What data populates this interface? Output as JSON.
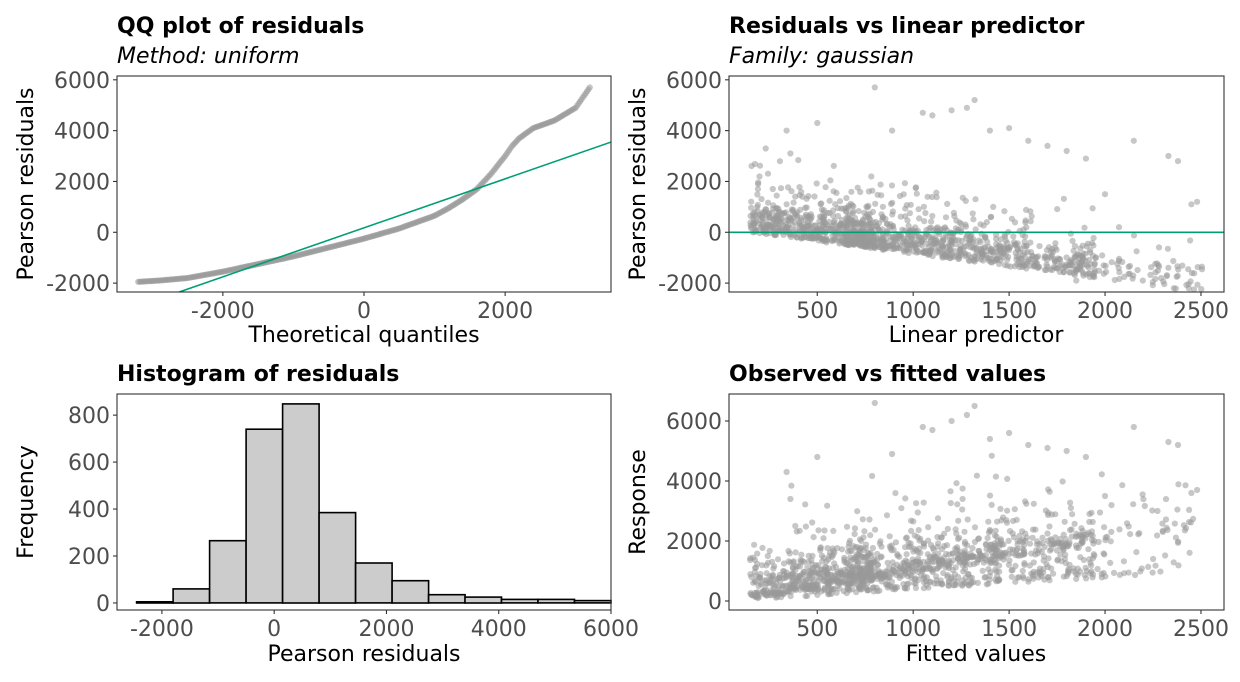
{
  "colors": {
    "point": "#999999",
    "reference_line": "#009E73",
    "bar_fill": "#cccccc",
    "bar_stroke": "#000000",
    "panel_border": "#333333",
    "tick_text": "#4d4d4d"
  },
  "chart_data": [
    {
      "type": "scatter",
      "id": "qq",
      "title": "QQ plot of residuals",
      "subtitle": "Method: uniform",
      "xlabel": "Theoretical quantiles",
      "ylabel": "Pearson residuals",
      "xlim": [
        -3500,
        3500
      ],
      "ylim": [
        -2350,
        6150
      ],
      "xticks": [
        -2000,
        0,
        2000
      ],
      "yticks": [
        -2000,
        0,
        2000,
        4000,
        6000
      ],
      "grid": false,
      "reference_line": {
        "x": [
          -3500,
          3500
        ],
        "y": [
          -3200,
          3550
        ]
      },
      "quantile_curve": {
        "x": [
          -3200,
          -2900,
          -2500,
          -2000,
          -1500,
          -1000,
          -500,
          0,
          500,
          1000,
          1200,
          1400,
          1600,
          1800,
          2000,
          2100,
          2200,
          2400,
          2700,
          3000,
          3200
        ],
        "y": [
          -1950,
          -1900,
          -1800,
          -1550,
          -1250,
          -950,
          -600,
          -250,
          150,
          650,
          950,
          1300,
          1700,
          2300,
          3000,
          3400,
          3700,
          4100,
          4400,
          4900,
          5700
        ]
      }
    },
    {
      "type": "scatter",
      "id": "resid_vs_lp",
      "title": "Residuals vs linear predictor",
      "subtitle": "Family: gaussian",
      "xlabel": "Linear predictor",
      "ylabel": "Pearson residuals",
      "xlim": [
        40,
        2620
      ],
      "ylim": [
        -2350,
        6150
      ],
      "xticks": [
        500,
        1000,
        1500,
        2000,
        2500
      ],
      "yticks": [
        -2000,
        0,
        2000,
        4000,
        6000
      ],
      "grid": false,
      "reference_line": {
        "y": 0
      },
      "points_description": "dense cloud, bottom edge along y = 150 - x",
      "sample_points": {
        "x": [
          340,
          360,
          500,
          800,
          890,
          1050,
          1100,
          1200,
          1280,
          1320,
          1400,
          1500,
          1600,
          1700,
          1800,
          1900,
          2000,
          2150,
          2330,
          2380,
          2450,
          2480,
          1850
        ],
        "y": [
          4000,
          3100,
          4300,
          5700,
          4000,
          4700,
          4600,
          4800,
          4900,
          5200,
          4000,
          4100,
          3600,
          3400,
          3200,
          2900,
          1500,
          3600,
          3000,
          2800,
          1100,
          1200,
          -1900
        ]
      }
    },
    {
      "type": "bar",
      "id": "hist",
      "title": "Histogram of residuals",
      "xlabel": "Pearson residuals",
      "ylabel": "Frequency",
      "xlim": [
        -2800,
        6000
      ],
      "ylim": [
        -30,
        890
      ],
      "xticks": [
        -2000,
        0,
        2000,
        4000,
        6000
      ],
      "yticks": [
        0,
        200,
        400,
        600,
        800
      ],
      "grid": false,
      "bin_width": 650,
      "bin_starts": [
        -2450,
        -1800,
        -1150,
        -500,
        150,
        800,
        1450,
        2100,
        2750,
        3400,
        4050,
        4700,
        5350
      ],
      "values": [
        5,
        60,
        265,
        740,
        848,
        385,
        170,
        95,
        35,
        25,
        15,
        15,
        10
      ]
    },
    {
      "type": "scatter",
      "id": "obs_vs_fitted",
      "title": "Observed vs fitted values",
      "xlabel": "Fitted values",
      "ylabel": "Response",
      "xlim": [
        40,
        2620
      ],
      "ylim": [
        -300,
        6900
      ],
      "xticks": [
        500,
        1000,
        1500,
        2000,
        2500
      ],
      "yticks": [
        0,
        2000,
        4000,
        6000
      ],
      "grid": false,
      "sample_points": {
        "x": [
          340,
          360,
          500,
          800,
          890,
          1050,
          1100,
          1200,
          1280,
          1320,
          1400,
          1500,
          1600,
          1700,
          1800,
          1900,
          2000,
          2150,
          2330,
          2380,
          2450,
          2480
        ],
        "y": [
          4300,
          3400,
          4800,
          6600,
          4900,
          5800,
          5700,
          6000,
          6200,
          6500,
          5400,
          5600,
          5200,
          5100,
          5000,
          4800,
          3500,
          5800,
          5300,
          5200,
          3600,
          3700
        ]
      }
    }
  ]
}
